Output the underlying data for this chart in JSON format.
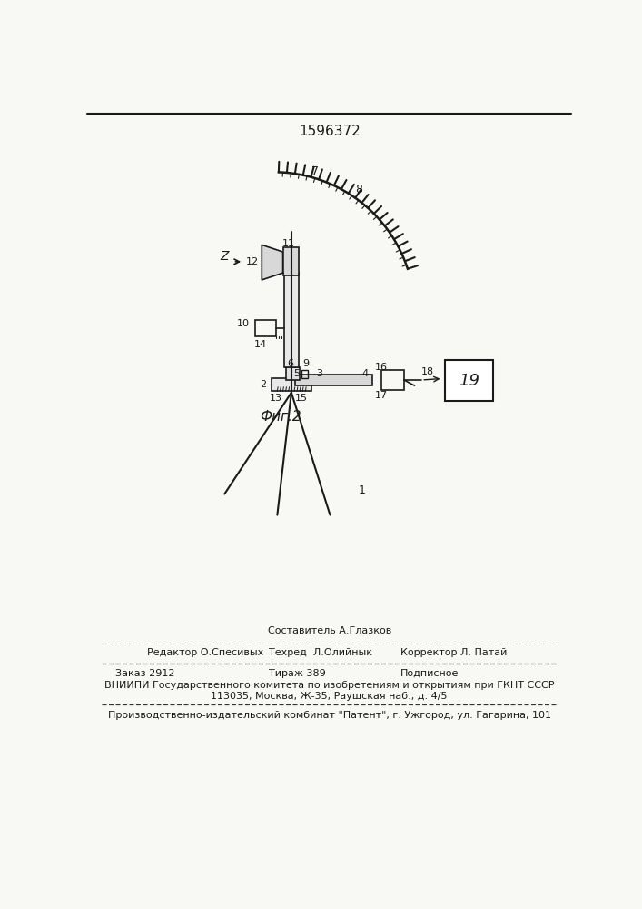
{
  "title_number": "1596372",
  "fig_label": "Фиг.2",
  "bg_color": "#f8f8f5",
  "line_color": "#1a1a1a",
  "editor_line1": "Составитель А.Глазков",
  "editor_line2_left": "Редактор О.Спесивых",
  "editor_line2_mid": "Техред  Л.Олийнык",
  "editor_line2_right": "Корректор Л. Патай",
  "footer_order": "Заказ 2912",
  "footer_tirazh": "Тираж 389",
  "footer_podp": "Подписное",
  "footer_vniip": "ВНИИПИ Государственного комитета по изобретениям и открытиям при ГКНТ СССР",
  "footer_addr": "113035, Москва, Ж-35, Раушская наб., д. 4/5",
  "footer_prod": "Производственно-издательский комбинат \"Патент\", г. Ужгород, ул. Гагарина, 101"
}
